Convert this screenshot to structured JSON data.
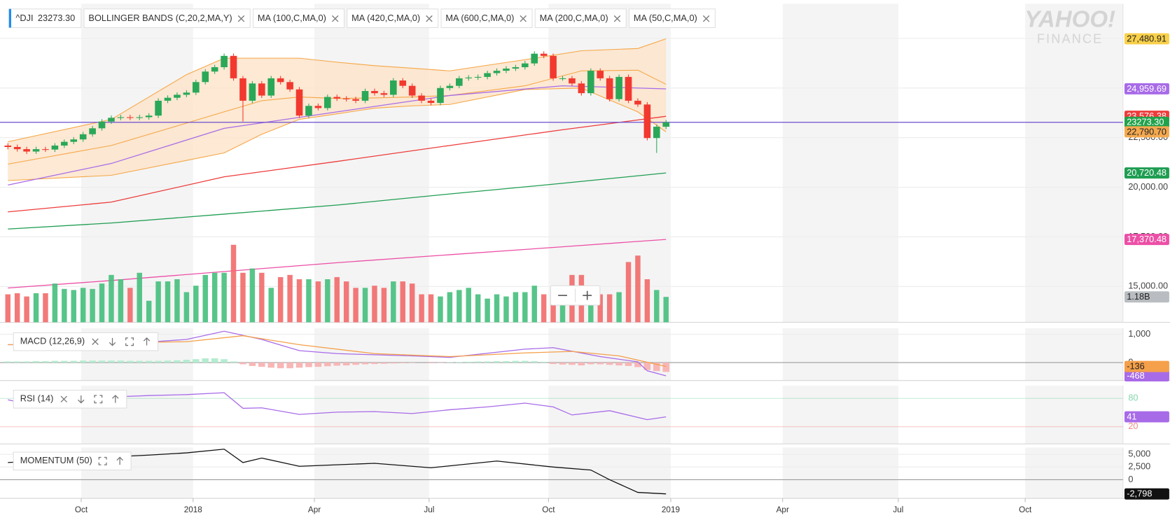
{
  "toolbar": {
    "symbol": "^DJI",
    "studies": [
      "BOLLINGER BANDS (C,20,2,MA,Y)",
      "MA (100,C,MA,0)",
      "MA (420,C,MA,0)",
      "MA (600,C,MA,0)",
      "MA (200,C,MA,0)",
      "MA (50,C,MA,0)"
    ]
  },
  "logo": {
    "brand": "YAHOO!",
    "product": "FINANCE"
  },
  "chart_data": [
    {
      "type": "candlestick",
      "xlim": [
        -0.6,
        118.6
      ],
      "xticks": [
        {
          "value": 7.8,
          "label": "Oct"
        },
        {
          "value": 19.7,
          "label": "2018"
        },
        {
          "value": 32.6,
          "label": "Apr"
        },
        {
          "value": 44.8,
          "label": "Jul"
        },
        {
          "value": 57.5,
          "label": "Oct"
        },
        {
          "value": 70.5,
          "label": "2019"
        },
        {
          "value": 82.4,
          "label": "Apr"
        },
        {
          "value": 94.7,
          "label": "Jul"
        },
        {
          "value": 108.2,
          "label": "Oct"
        }
      ],
      "ylim": [
        13195,
        29248
      ],
      "yticks": [
        {
          "value": 15000,
          "label": "15,000.00"
        },
        {
          "value": 17500,
          "label": "17,500.00"
        },
        {
          "value": 20000,
          "label": "20,000.00"
        },
        {
          "value": 22500,
          "label": "22,500.00"
        },
        {
          "value": 25000,
          "label": "25,000.00"
        },
        {
          "value": 27500,
          "label": "27,500.00"
        }
      ],
      "grid": true,
      "open": [
        22100,
        22030,
        21920,
        21800,
        21920,
        21900,
        22100,
        22290,
        22410,
        22670,
        22970,
        23310,
        23500,
        23530,
        23500,
        23530,
        23610,
        24360,
        24510,
        24660,
        24770,
        25300,
        25830,
        26050,
        26620,
        25490,
        24360,
        25230,
        24620,
        25490,
        25300,
        24930,
        23610,
        24100,
        23990,
        24550,
        24470,
        24440,
        24360,
        24850,
        24740,
        24660,
        25380,
        25110,
        24620,
        24360,
        24250,
        25000,
        25110,
        25490,
        25530,
        25560,
        25750,
        25870,
        25980,
        26050,
        26240,
        26730,
        26620,
        25490,
        25490,
        25230,
        24740,
        25870,
        25490,
        24440,
        25560,
        24360,
        24170,
        22480,
        23050
      ],
      "high": [
        22220,
        22150,
        22040,
        22040,
        22040,
        22220,
        22410,
        22530,
        22790,
        23090,
        23430,
        23620,
        23650,
        23650,
        23650,
        23730,
        24480,
        24630,
        24780,
        24890,
        25420,
        25950,
        26170,
        26740,
        26740,
        25610,
        25350,
        25350,
        25610,
        25610,
        25420,
        25050,
        24220,
        24220,
        24670,
        24670,
        24590,
        24560,
        24970,
        24970,
        24860,
        25500,
        25500,
        25230,
        24740,
        24480,
        25120,
        25230,
        25610,
        25650,
        25680,
        25870,
        25990,
        26100,
        26170,
        26360,
        26850,
        26850,
        26740,
        25610,
        25610,
        25350,
        25990,
        25990,
        25610,
        25680,
        25680,
        24480,
        24290,
        23170,
        23390
      ],
      "low": [
        21910,
        21800,
        21680,
        21680,
        21780,
        21780,
        21980,
        22170,
        22290,
        22550,
        22850,
        23190,
        23380,
        23380,
        23380,
        23410,
        23490,
        24240,
        24390,
        24540,
        24650,
        25180,
        25710,
        25930,
        25370,
        23310,
        24240,
        24500,
        24500,
        25180,
        24810,
        23490,
        23490,
        23870,
        23870,
        24350,
        24320,
        24240,
        24240,
        24620,
        24540,
        24540,
        24990,
        24500,
        24240,
        24130,
        24130,
        24880,
        24990,
        25370,
        25410,
        25440,
        25630,
        25750,
        25860,
        25930,
        26120,
        26500,
        25370,
        25370,
        25110,
        24620,
        24620,
        25370,
        24320,
        24320,
        24240,
        24050,
        22360,
        21729,
        22930
      ],
      "close": [
        22030,
        21920,
        21800,
        21920,
        21900,
        22100,
        22290,
        22410,
        22670,
        22970,
        23310,
        23500,
        23530,
        23500,
        23530,
        23610,
        24360,
        24510,
        24660,
        24770,
        25300,
        25830,
        26050,
        26620,
        25490,
        24360,
        25230,
        24620,
        25490,
        25300,
        24930,
        23610,
        24100,
        23990,
        24550,
        24470,
        24440,
        24360,
        24850,
        24740,
        24660,
        25380,
        25110,
        24620,
        24360,
        24250,
        25000,
        25110,
        25490,
        25530,
        25560,
        25750,
        25870,
        25980,
        26050,
        26240,
        26730,
        26620,
        25490,
        25490,
        25230,
        24740,
        25870,
        25490,
        24440,
        25560,
        24360,
        24170,
        22480,
        23050,
        23273.3
      ],
      "up_color": "#2aa858",
      "down_color": "#f2392f",
      "y2lim": [
        0,
        14.8
      ],
      "volume": {
        "axis": "y2",
        "values": [
          1.3,
          1.35,
          1.2,
          1.35,
          1.35,
          1.8,
          1.55,
          1.5,
          1.6,
          1.55,
          1.8,
          2.2,
          2.0,
          1.6,
          2.3,
          1.0,
          1.9,
          1.9,
          2.0,
          1.4,
          1.7,
          2.2,
          2.3,
          2.3,
          3.6,
          2.3,
          2.5,
          2.3,
          1.6,
          2.1,
          2.2,
          2.0,
          2.0,
          1.9,
          2.0,
          2.1,
          1.9,
          1.6,
          1.6,
          1.7,
          1.6,
          1.9,
          1.9,
          1.8,
          1.3,
          1.3,
          1.2,
          1.4,
          1.5,
          1.6,
          1.3,
          1.1,
          1.3,
          1.2,
          1.4,
          1.4,
          1.7,
          1.3,
          1.5,
          1.3,
          2.2,
          2.2,
          1.1,
          1.3,
          1.3,
          1.4,
          2.8,
          3.1,
          2.0,
          1.5,
          1.18
        ],
        "up_color": "#45bf7c",
        "down_color": "#f26a6a",
        "label": "1.18B",
        "label_color": "#b9bdc2"
      },
      "bollinger": {
        "color": "#f6a645",
        "fill": "#fde4c9",
        "x": [
          0,
          11,
          19,
          23,
          27,
          31,
          35,
          39,
          43,
          47,
          55,
          61,
          67,
          70
        ],
        "upper": [
          22293,
          23421,
          25677,
          26504,
          26504,
          26504,
          26300,
          26128,
          26000,
          25865,
          26429,
          26880,
          26992,
          27480.91
        ],
        "middle": [
          21165,
          22105,
          23233,
          23800,
          24361,
          24550,
          24474,
          24500,
          24550,
          24624,
          25113,
          25865,
          25900,
          25188
        ],
        "lower": [
          20338,
          20602,
          21353,
          21729,
          22669,
          23421,
          23700,
          23985,
          24100,
          24173,
          24925,
          25000,
          23797,
          22790.7
        ],
        "upper_label": "27,480.91",
        "upper_label_color": "#f9d04a",
        "lower_label": "22,790.70",
        "lower_label_color": "#f4a94f"
      },
      "lines": [
        {
          "color": "#ee3b3b",
          "x": [
            0,
            11,
            23,
            35,
            47,
            59,
            70
          ],
          "values": [
            18760,
            19250,
            20526,
            21300,
            22105,
            22900,
            23576.38
          ],
          "label": "23,576.38"
        },
        {
          "color": "#1f9d52",
          "x": [
            0,
            11,
            23,
            35,
            47,
            59,
            70
          ],
          "values": [
            17895,
            18200,
            18647,
            19100,
            19662,
            20200,
            20720.48
          ],
          "label": "20,720.48"
        },
        {
          "color": "#ec4fa6",
          "x": [
            0,
            11,
            23,
            35,
            47,
            59,
            70
          ],
          "values": [
            14925,
            15300,
            15750,
            16200,
            16600,
            17000,
            17370.48
          ],
          "label": "17,370.48"
        },
        {
          "color": "#a86be8",
          "x": [
            0,
            11,
            23,
            35,
            47,
            59,
            70
          ],
          "values": [
            20113,
            21200,
            22970,
            23797,
            24624,
            25113,
            24959.69
          ],
          "label": "24,959.69"
        }
      ],
      "price_line": {
        "value": 23273.3,
        "label": "23273.30",
        "color": "#6c4fd0",
        "label_color": "#21a24b"
      }
    },
    {
      "type": "line",
      "title": "MACD (12,26,9)",
      "ylim": [
        -632,
        1211
      ],
      "yticks": [
        0,
        {
          "value": 1000,
          "label": "1,000"
        }
      ],
      "zero_line": true,
      "histogram": {
        "values": [
          40,
          40,
          40,
          50,
          50,
          60,
          60,
          60,
          70,
          70,
          70,
          70,
          70,
          60,
          60,
          60,
          60,
          70,
          80,
          100,
          120,
          150,
          150,
          120,
          40,
          -60,
          -120,
          -150,
          -180,
          -200,
          -200,
          -180,
          -160,
          -150,
          -130,
          -110,
          -100,
          -80,
          -60,
          -50,
          -40,
          -30,
          -20,
          -10,
          0,
          -20,
          -10,
          10,
          20,
          30,
          40,
          40,
          50,
          50,
          60,
          60,
          50,
          30,
          -50,
          -70,
          -80,
          -100,
          -60,
          -60,
          -80,
          -100,
          -120,
          -160,
          -260,
          -300,
          -330
        ],
        "up_color": "#b4ecd0",
        "down_color": "#f8b6b6"
      },
      "series": [
        {
          "color": "#a86be8",
          "x": [
            0,
            11,
            19,
            23,
            27,
            31,
            35,
            43,
            47,
            55,
            58,
            63,
            67,
            68,
            70
          ],
          "values": [
            632,
            632,
            816,
            1105,
            816,
            421,
            316,
            237,
            184,
            474,
            526,
            211,
            26,
            -290,
            -468
          ],
          "label": "-468"
        },
        {
          "color": "#f5a04a",
          "x": [
            0,
            19,
            25,
            31,
            39,
            47,
            55,
            60,
            65,
            70
          ],
          "values": [
            632,
            737,
            947,
            632,
            316,
            211,
            342,
            395,
            237,
            -136
          ],
          "label": "-136"
        }
      ]
    },
    {
      "type": "line",
      "title": "RSI (14)",
      "ylim": [
        -16.3,
        106.8
      ],
      "yticks": [
        20,
        80
      ],
      "ytick_colors": [
        "#f28b8b",
        "#86d6ad"
      ],
      "series": [
        {
          "color": "#a86be8",
          "x": [
            0,
            4,
            7,
            11,
            15,
            19,
            23,
            25,
            27,
            31,
            35,
            39,
            43,
            47,
            51,
            55,
            58,
            60,
            64,
            68,
            70
          ],
          "values": [
            77,
            60,
            77,
            83,
            86,
            88,
            92,
            59,
            60,
            46,
            51,
            52,
            48,
            56,
            62,
            70,
            62,
            45,
            54,
            35,
            41
          ],
          "label": "41"
        }
      ]
    },
    {
      "type": "line",
      "title": "MOMENTUM (50)",
      "ylim": [
        -3676,
        6324
      ],
      "yticks": [
        0,
        {
          "value": 2500,
          "label": "2,500"
        },
        {
          "value": 5000,
          "label": "5,000"
        }
      ],
      "zero_line": true,
      "series": [
        {
          "color": "#111111",
          "x": [
            0,
            7,
            15,
            19,
            23,
            25,
            27,
            31,
            39,
            45,
            52,
            58,
            62,
            64,
            67,
            70
          ],
          "values": [
            3382,
            4118,
            4853,
            5294,
            6029,
            3382,
            4265,
            2647,
            3235,
            2353,
            3676,
            2500,
            1912,
            0,
            -2500,
            -2798
          ],
          "label": "-2,798"
        }
      ]
    }
  ]
}
